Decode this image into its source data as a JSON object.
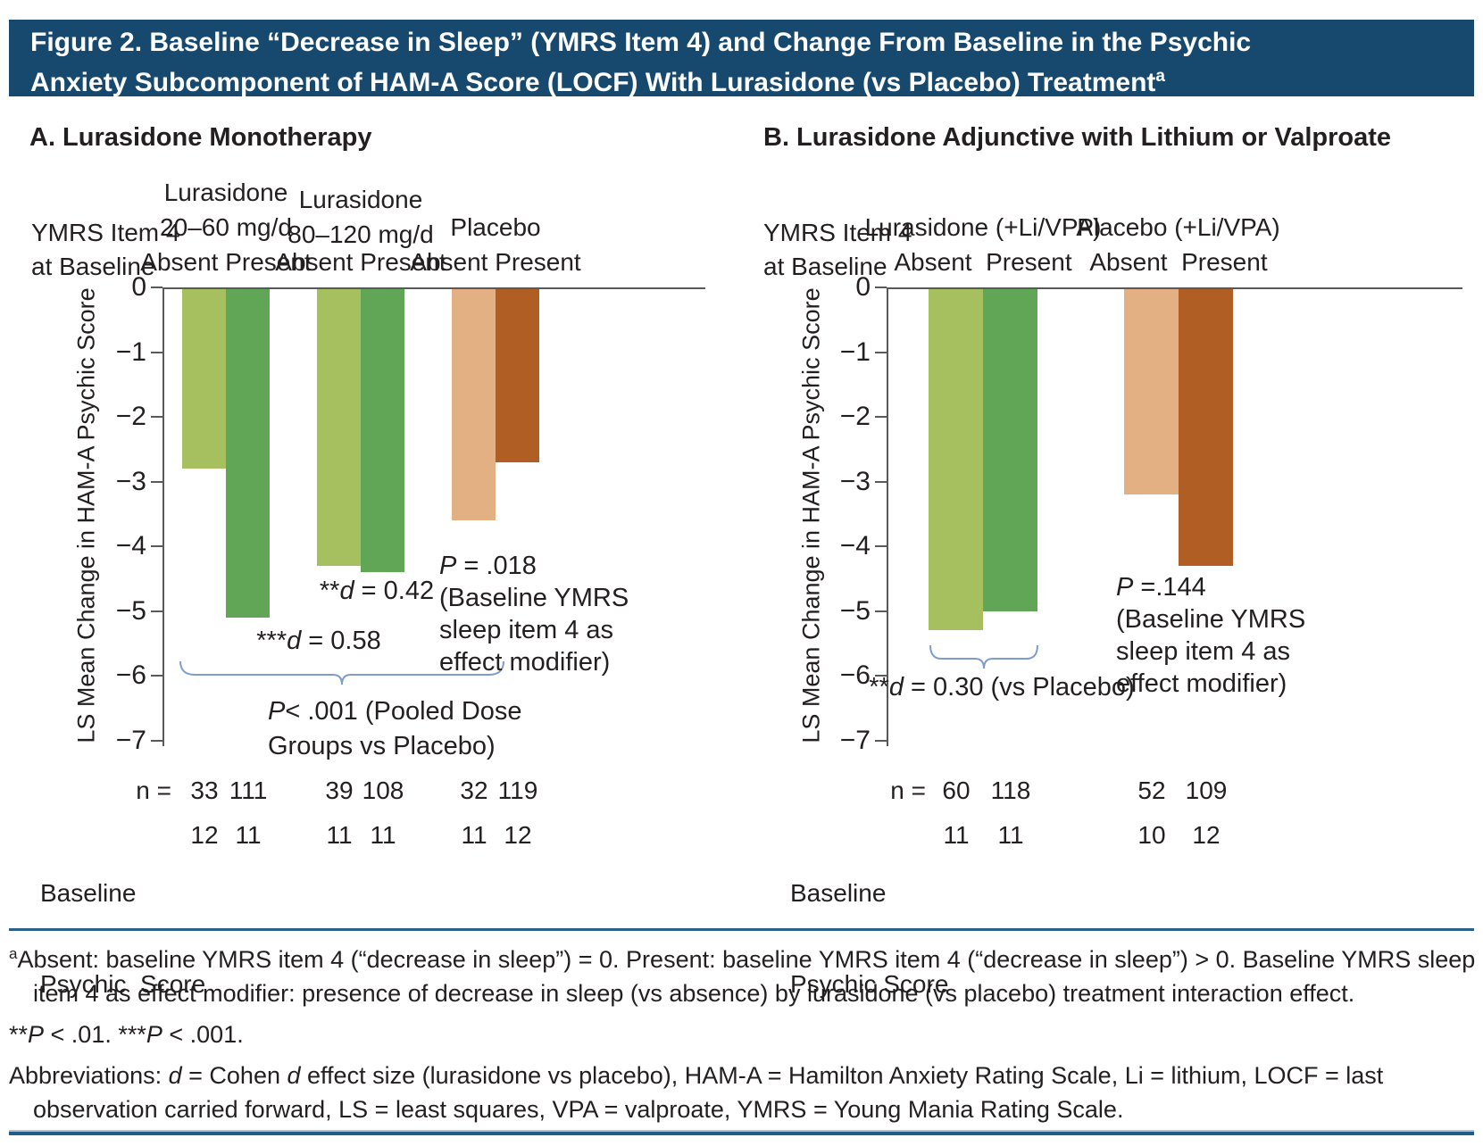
{
  "title": {
    "line1": "Figure 2. Baseline “Decrease in Sleep” (YMRS Item 4) and Change From Baseline in the Psychic",
    "line2": "Anxiety Subcomponent of HAM-A Score (LOCF) With Lurasidone (vs Placebo) Treatment",
    "footnote_marker": "a"
  },
  "colors": {
    "header_bar": "#17496E",
    "green_light": "#A6C060",
    "green_dark": "#61A656",
    "tan_light": "#E2B083",
    "orange_dark": "#B15E25",
    "bracket": "#7E9CC9",
    "rule_blue": "#2C5F8A"
  },
  "chart_data": [
    {
      "type": "bar",
      "title": "A. Lurasidone Monotherapy",
      "row_label_line1": "YMRS Item 4",
      "row_label_line2": "at Baseline",
      "ylabel": "LS Mean Change in HAM-A  Psychic Score",
      "ylim": [
        0,
        -7
      ],
      "yticks": [
        "0",
        "−1",
        "−2",
        "−3",
        "−4",
        "−5",
        "−6",
        "−7"
      ],
      "n_row_label": "n =",
      "baseline_row_label_line1": "Baseline",
      "baseline_row_label_line2": "Psychic  Score",
      "groups": [
        {
          "name": "Lurasidone",
          "dose": "20–60 mg/d",
          "sub": "Absent Present",
          "bars": [
            {
              "condition": "Absent",
              "value": -2.8,
              "n": "33",
              "baseline_psychic_score": "12",
              "color_key": "green_light"
            },
            {
              "condition": "Present",
              "value": -5.1,
              "n": "111",
              "baseline_psychic_score": "11",
              "color_key": "green_dark"
            }
          ]
        },
        {
          "name": "Lurasidone",
          "dose": "80–120 mg/d",
          "sub": "Absent Present",
          "bars": [
            {
              "condition": "Absent",
              "value": -4.3,
              "n": "39",
              "baseline_psychic_score": "11",
              "color_key": "green_light"
            },
            {
              "condition": "Present",
              "value": -4.4,
              "n": "108",
              "baseline_psychic_score": "11",
              "color_key": "green_dark"
            }
          ]
        },
        {
          "name": "Placebo",
          "dose": "",
          "sub": "Absent Present",
          "bars": [
            {
              "condition": "Absent",
              "value": -3.6,
              "n": "32",
              "baseline_psychic_score": "11",
              "color_key": "tan_light"
            },
            {
              "condition": "Present",
              "value": -2.7,
              "n": "119",
              "baseline_psychic_score": "12",
              "color_key": "orange_dark"
            }
          ]
        }
      ],
      "annotations": {
        "effect_size_1": {
          "stars": "***",
          "symbol": "d",
          "rest": " = 0.58"
        },
        "effect_size_2": {
          "stars": "**",
          "symbol": "d",
          "rest": " = 0.42"
        },
        "pooled": {
          "symbol": "P",
          "rest": "< .001 (Pooled Dose",
          "line2": "Groups vs Placebo)"
        },
        "modifier": {
          "symbol": "P",
          "rest": " = .018",
          "lines": [
            "(Baseline YMRS",
            "sleep item 4 as",
            "effect modifier)"
          ]
        }
      }
    },
    {
      "type": "bar",
      "title": "B. Lurasidone Adjunctive with Lithium or Valproate",
      "row_label_line1": "YMRS Item 4",
      "row_label_line2": "at Baseline",
      "ylabel": "LS Mean Change in HAM-A  Psychic Score",
      "ylim": [
        0,
        -7
      ],
      "yticks": [
        "0",
        "−1",
        "−2",
        "−3",
        "−4",
        "−5",
        "−6",
        "−7"
      ],
      "n_row_label": "n =",
      "baseline_row_label_line1": "Baseline",
      "baseline_row_label_line2": "Psychic Score",
      "groups": [
        {
          "name": "Lurasidone (+Li/VPA)",
          "dose": "",
          "sub": "Absent  Present",
          "bars": [
            {
              "condition": "Absent",
              "value": -5.3,
              "n": "60",
              "baseline_psychic_score": "11",
              "color_key": "green_light"
            },
            {
              "condition": "Present",
              "value": -5.0,
              "n": "118",
              "baseline_psychic_score": "11",
              "color_key": "green_dark"
            }
          ]
        },
        {
          "name": "Placebo (+Li/VPA)",
          "dose": "",
          "sub": "Absent  Present",
          "bars": [
            {
              "condition": "Absent",
              "value": -3.2,
              "n": "52",
              "baseline_psychic_score": "10",
              "color_key": "tan_light"
            },
            {
              "condition": "Present",
              "value": -4.3,
              "n": "109",
              "baseline_psychic_score": "12",
              "color_key": "orange_dark"
            }
          ]
        }
      ],
      "annotations": {
        "effect_size_1": {
          "stars": "**",
          "symbol": "d",
          "rest": " = 0.30 (vs Placebo)"
        },
        "modifier": {
          "symbol": "P",
          "rest": " =.144",
          "lines": [
            "(Baseline YMRS",
            "sleep item 4 as",
            "effect modifier)"
          ]
        }
      }
    }
  ],
  "footnotes": {
    "marker": "a",
    "definition": "Absent: baseline YMRS item 4 (“decrease in sleep”) = 0. Present: baseline YMRS item 4 (“decrease in sleep”) > 0. Baseline YMRS sleep item 4 as effect modifier: presence of decrease in sleep (vs absence) by lurasidone (vs placebo) treatment interaction effect.",
    "significance": [
      "**",
      "P",
      " < .01.   ",
      "***",
      "P",
      " < .001."
    ],
    "abbreviations": [
      "Abbreviations: ",
      "d",
      " = Cohen ",
      "d",
      " effect size (lurasidone vs placebo), HAM-A = Hamilton Anxiety Rating Scale, Li = lithium, LOCF = last observation carried forward, LS = least squares, VPA = valproate, YMRS = Young Mania Rating Scale."
    ]
  }
}
